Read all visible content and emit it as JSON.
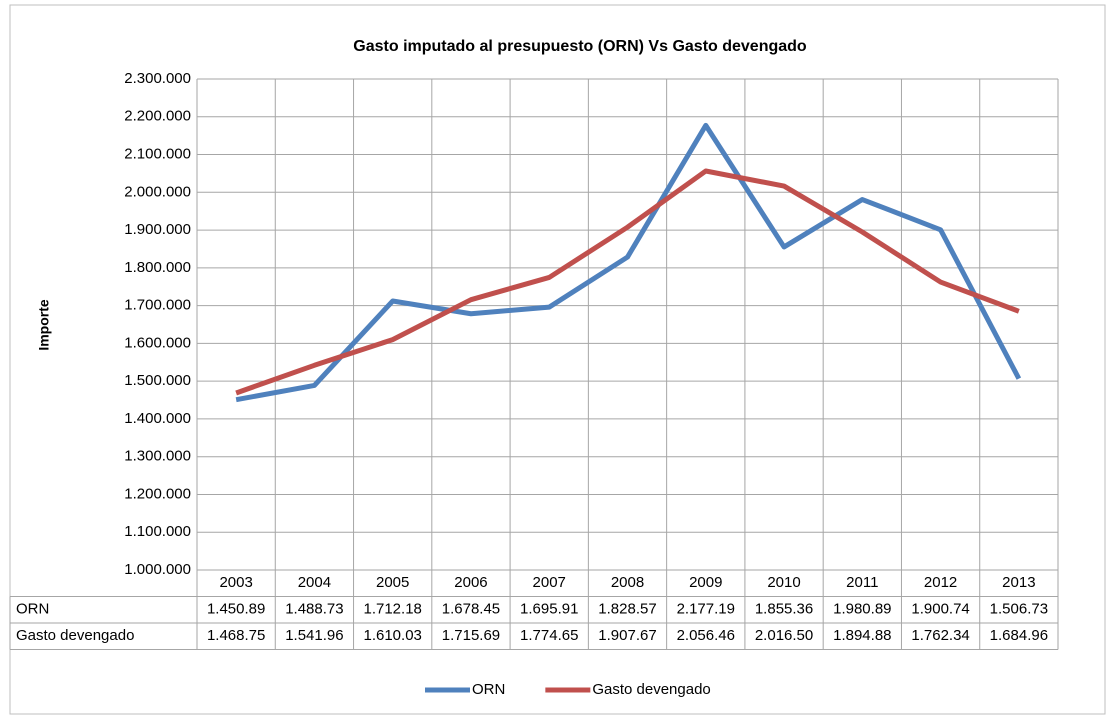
{
  "chart_data": {
    "type": "line",
    "title": "Gasto imputado al presupuesto (ORN) Vs Gasto devengado",
    "y_label": "Importe",
    "categories": [
      "2003",
      "2004",
      "2005",
      "2006",
      "2007",
      "2008",
      "2009",
      "2010",
      "2011",
      "2012",
      "2013"
    ],
    "series": [
      {
        "name": "ORN",
        "color": "#4f81bd",
        "values": [
          1450890,
          1488730,
          1712180,
          1678450,
          1695910,
          1828570,
          2177190,
          1855360,
          1980890,
          1900740,
          1506730
        ],
        "value_labels": [
          "1.450.89",
          "1.488.73",
          "1.712.18",
          "1.678.45",
          "1.695.91",
          "1.828.57",
          "2.177.19",
          "1.855.36",
          "1.980.89",
          "1.900.74",
          "1.506.73"
        ]
      },
      {
        "name": "Gasto devengado",
        "color": "#c0504d",
        "values": [
          1468750,
          1541960,
          1610030,
          1715690,
          1774650,
          1907670,
          2056460,
          2016500,
          1894880,
          1762340,
          1684960
        ],
        "value_labels": [
          "1.468.75",
          "1.541.96",
          "1.610.03",
          "1.715.69",
          "1.774.65",
          "1.907.67",
          "2.056.46",
          "2.016.50",
          "1.894.88",
          "1.762.34",
          "1.684.96"
        ]
      }
    ],
    "ylim": [
      1000000,
      2300000
    ],
    "yticks": [
      {
        "value": 1000000,
        "label": "1.000.000"
      },
      {
        "value": 1100000,
        "label": "1.100.000"
      },
      {
        "value": 1200000,
        "label": "1.200.000"
      },
      {
        "value": 1300000,
        "label": "1.300.000"
      },
      {
        "value": 1400000,
        "label": "1.400.000"
      },
      {
        "value": 1500000,
        "label": "1.500.000"
      },
      {
        "value": 1600000,
        "label": "1.600.000"
      },
      {
        "value": 1700000,
        "label": "1.700.000"
      },
      {
        "value": 1800000,
        "label": "1.800.000"
      },
      {
        "value": 1900000,
        "label": "1.900.000"
      },
      {
        "value": 2000000,
        "label": "2.000.000"
      },
      {
        "value": 2100000,
        "label": "2.100.000"
      },
      {
        "value": 2200000,
        "label": "2.200.000"
      },
      {
        "value": 2300000,
        "label": "2.300.000"
      }
    ],
    "grid": true,
    "legend": "bottom"
  }
}
